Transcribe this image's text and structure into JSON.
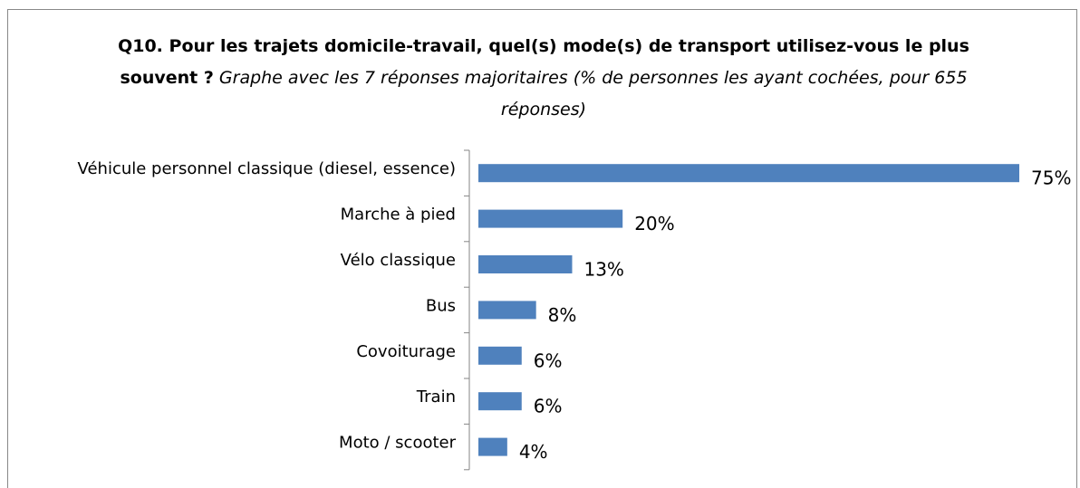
{
  "chart_data": {
    "type": "bar",
    "orientation": "horizontal",
    "title": "Q10. Pour les trajets domicile-travail, quel(s) mode(s) de transport utilisez-vous le plus souvent ?",
    "subtitle": "Graphe avec les 7 réponses majoritaires (% de personnes les ayant cochées, pour 655 réponses)",
    "categories": [
      "Véhicule personnel classique (diesel, essence)",
      "Marche à pied",
      "Vélo classique",
      "Bus",
      "Covoiturage",
      "Train",
      "Moto / scooter"
    ],
    "values": [
      75,
      20,
      13,
      8,
      6,
      6,
      4
    ],
    "value_labels": [
      "75%",
      "20%",
      "13%",
      "8%",
      "6%",
      "6%",
      "4%"
    ],
    "color": "#4f81bd"
  }
}
